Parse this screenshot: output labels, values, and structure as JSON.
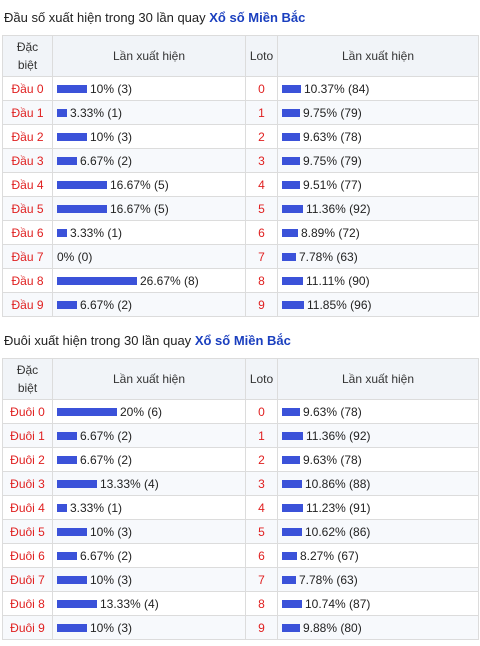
{
  "colors": {
    "bar": "#3b52d9",
    "label": "#e02020",
    "brand": "#1a3fbf"
  },
  "dau": {
    "caption_text": "Đầu số xuất hiện trong 30 lần quay",
    "caption_brand": "Xổ số Miền Bắc",
    "headers": {
      "col1_line1": "Đặc",
      "col1_line2": "biệt",
      "col2": "Lần xuất hiện",
      "col3": "Loto",
      "col4": "Lần xuất hiện"
    },
    "rows": [
      {
        "label": "Đầu 0",
        "special_pct": 10,
        "special_text": "10% (3)",
        "loto": "0",
        "loto_pct": 10.37,
        "loto_text": "10.37% (84)"
      },
      {
        "label": "Đầu 1",
        "special_pct": 3.33,
        "special_text": "3.33% (1)",
        "loto": "1",
        "loto_pct": 9.75,
        "loto_text": "9.75% (79)"
      },
      {
        "label": "Đầu 2",
        "special_pct": 10,
        "special_text": "10% (3)",
        "loto": "2",
        "loto_pct": 9.63,
        "loto_text": "9.63% (78)"
      },
      {
        "label": "Đầu 3",
        "special_pct": 6.67,
        "special_text": "6.67% (2)",
        "loto": "3",
        "loto_pct": 9.75,
        "loto_text": "9.75% (79)"
      },
      {
        "label": "Đầu 4",
        "special_pct": 16.67,
        "special_text": "16.67% (5)",
        "loto": "4",
        "loto_pct": 9.51,
        "loto_text": "9.51% (77)"
      },
      {
        "label": "Đầu 5",
        "special_pct": 16.67,
        "special_text": "16.67% (5)",
        "loto": "5",
        "loto_pct": 11.36,
        "loto_text": "11.36% (92)"
      },
      {
        "label": "Đầu 6",
        "special_pct": 3.33,
        "special_text": "3.33% (1)",
        "loto": "6",
        "loto_pct": 8.89,
        "loto_text": "8.89% (72)"
      },
      {
        "label": "Đầu 7",
        "special_pct": 0,
        "special_text": "0% (0)",
        "loto": "7",
        "loto_pct": 7.78,
        "loto_text": "7.78% (63)"
      },
      {
        "label": "Đầu 8",
        "special_pct": 26.67,
        "special_text": "26.67% (8)",
        "loto": "8",
        "loto_pct": 11.11,
        "loto_text": "11.11% (90)"
      },
      {
        "label": "Đầu 9",
        "special_pct": 6.67,
        "special_text": "6.67% (2)",
        "loto": "9",
        "loto_pct": 11.85,
        "loto_text": "11.85% (96)"
      }
    ]
  },
  "duoi": {
    "caption_text": "Đuôi xuất hiện trong 30 lần quay",
    "caption_brand": "Xổ số Miền Bắc",
    "headers": {
      "col1_line1": "Đặc",
      "col1_line2": "biệt",
      "col2": "Lần xuất hiện",
      "col3": "Loto",
      "col4": "Lần xuất hiện"
    },
    "rows": [
      {
        "label": "Đuôi 0",
        "special_pct": 20,
        "special_text": "20% (6)",
        "loto": "0",
        "loto_pct": 9.63,
        "loto_text": "9.63% (78)"
      },
      {
        "label": "Đuôi 1",
        "special_pct": 6.67,
        "special_text": "6.67% (2)",
        "loto": "1",
        "loto_pct": 11.36,
        "loto_text": "11.36% (92)"
      },
      {
        "label": "Đuôi 2",
        "special_pct": 6.67,
        "special_text": "6.67% (2)",
        "loto": "2",
        "loto_pct": 9.63,
        "loto_text": "9.63% (78)"
      },
      {
        "label": "Đuôi 3",
        "special_pct": 13.33,
        "special_text": "13.33% (4)",
        "loto": "3",
        "loto_pct": 10.86,
        "loto_text": "10.86% (88)"
      },
      {
        "label": "Đuôi 4",
        "special_pct": 3.33,
        "special_text": "3.33% (1)",
        "loto": "4",
        "loto_pct": 11.23,
        "loto_text": "11.23% (91)"
      },
      {
        "label": "Đuôi 5",
        "special_pct": 10,
        "special_text": "10% (3)",
        "loto": "5",
        "loto_pct": 10.62,
        "loto_text": "10.62% (86)"
      },
      {
        "label": "Đuôi 6",
        "special_pct": 6.67,
        "special_text": "6.67% (2)",
        "loto": "6",
        "loto_pct": 8.27,
        "loto_text": "8.27% (67)"
      },
      {
        "label": "Đuôi 7",
        "special_pct": 10,
        "special_text": "10% (3)",
        "loto": "7",
        "loto_pct": 7.78,
        "loto_text": "7.78% (63)"
      },
      {
        "label": "Đuôi 8",
        "special_pct": 13.33,
        "special_text": "13.33% (4)",
        "loto": "8",
        "loto_pct": 10.74,
        "loto_text": "10.74% (87)"
      },
      {
        "label": "Đuôi 9",
        "special_pct": 10,
        "special_text": "10% (3)",
        "loto": "9",
        "loto_pct": 9.88,
        "loto_text": "9.88% (80)"
      }
    ]
  }
}
